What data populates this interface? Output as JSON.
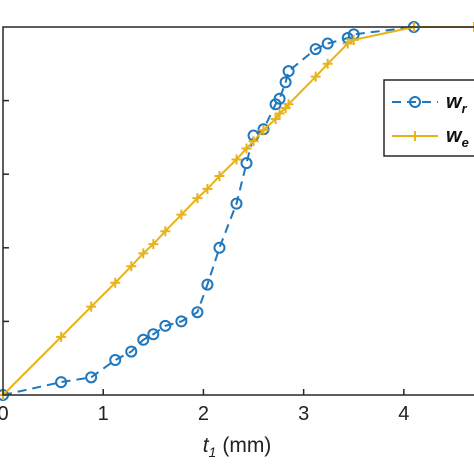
{
  "chart_data": {
    "type": "line",
    "xlabel": "t",
    "xlabel_subscript": "1",
    "xlabel_unit": "(mm)",
    "xlim": [
      0,
      4.7
    ],
    "ylim": [
      0,
      1
    ],
    "x_ticks": [
      "0",
      "1",
      "2",
      "3",
      "4"
    ],
    "grid": false,
    "legend_position": "top-right",
    "series": [
      {
        "name": "w",
        "subscript": "r",
        "color": "#1f77bd",
        "style": "dashed",
        "marker": "circle",
        "points": [
          [
            0.0,
            0.0
          ],
          [
            0.58,
            0.035
          ],
          [
            0.88,
            0.048
          ],
          [
            1.12,
            0.095
          ],
          [
            1.28,
            0.118
          ],
          [
            1.4,
            0.15
          ],
          [
            1.5,
            0.165
          ],
          [
            1.62,
            0.188
          ],
          [
            1.78,
            0.2
          ],
          [
            1.94,
            0.225
          ],
          [
            2.04,
            0.3
          ],
          [
            2.16,
            0.4
          ],
          [
            2.33,
            0.52
          ],
          [
            2.43,
            0.63
          ],
          [
            2.5,
            0.705
          ],
          [
            2.6,
            0.722
          ],
          [
            2.72,
            0.79
          ],
          [
            2.76,
            0.805
          ],
          [
            2.82,
            0.85
          ],
          [
            2.85,
            0.88
          ],
          [
            3.12,
            0.94
          ],
          [
            3.24,
            0.955
          ],
          [
            3.44,
            0.97
          ],
          [
            3.5,
            0.98
          ],
          [
            4.1,
            1.0
          ]
        ]
      },
      {
        "name": "w",
        "subscript": "e",
        "color": "#e8b21a",
        "style": "solid",
        "marker": "plus",
        "points": [
          [
            0.0,
            0.0
          ],
          [
            0.58,
            0.158
          ],
          [
            0.88,
            0.24
          ],
          [
            1.12,
            0.305
          ],
          [
            1.28,
            0.35
          ],
          [
            1.4,
            0.385
          ],
          [
            1.5,
            0.41
          ],
          [
            1.62,
            0.445
          ],
          [
            1.78,
            0.49
          ],
          [
            1.94,
            0.535
          ],
          [
            2.04,
            0.56
          ],
          [
            2.16,
            0.595
          ],
          [
            2.33,
            0.64
          ],
          [
            2.43,
            0.67
          ],
          [
            2.5,
            0.69
          ],
          [
            2.6,
            0.72
          ],
          [
            2.72,
            0.75
          ],
          [
            2.76,
            0.765
          ],
          [
            2.82,
            0.78
          ],
          [
            2.85,
            0.79
          ],
          [
            3.12,
            0.865
          ],
          [
            3.24,
            0.9
          ],
          [
            3.44,
            0.955
          ],
          [
            3.5,
            0.965
          ],
          [
            4.1,
            1.0
          ],
          [
            4.7,
            1.0
          ]
        ]
      }
    ]
  }
}
